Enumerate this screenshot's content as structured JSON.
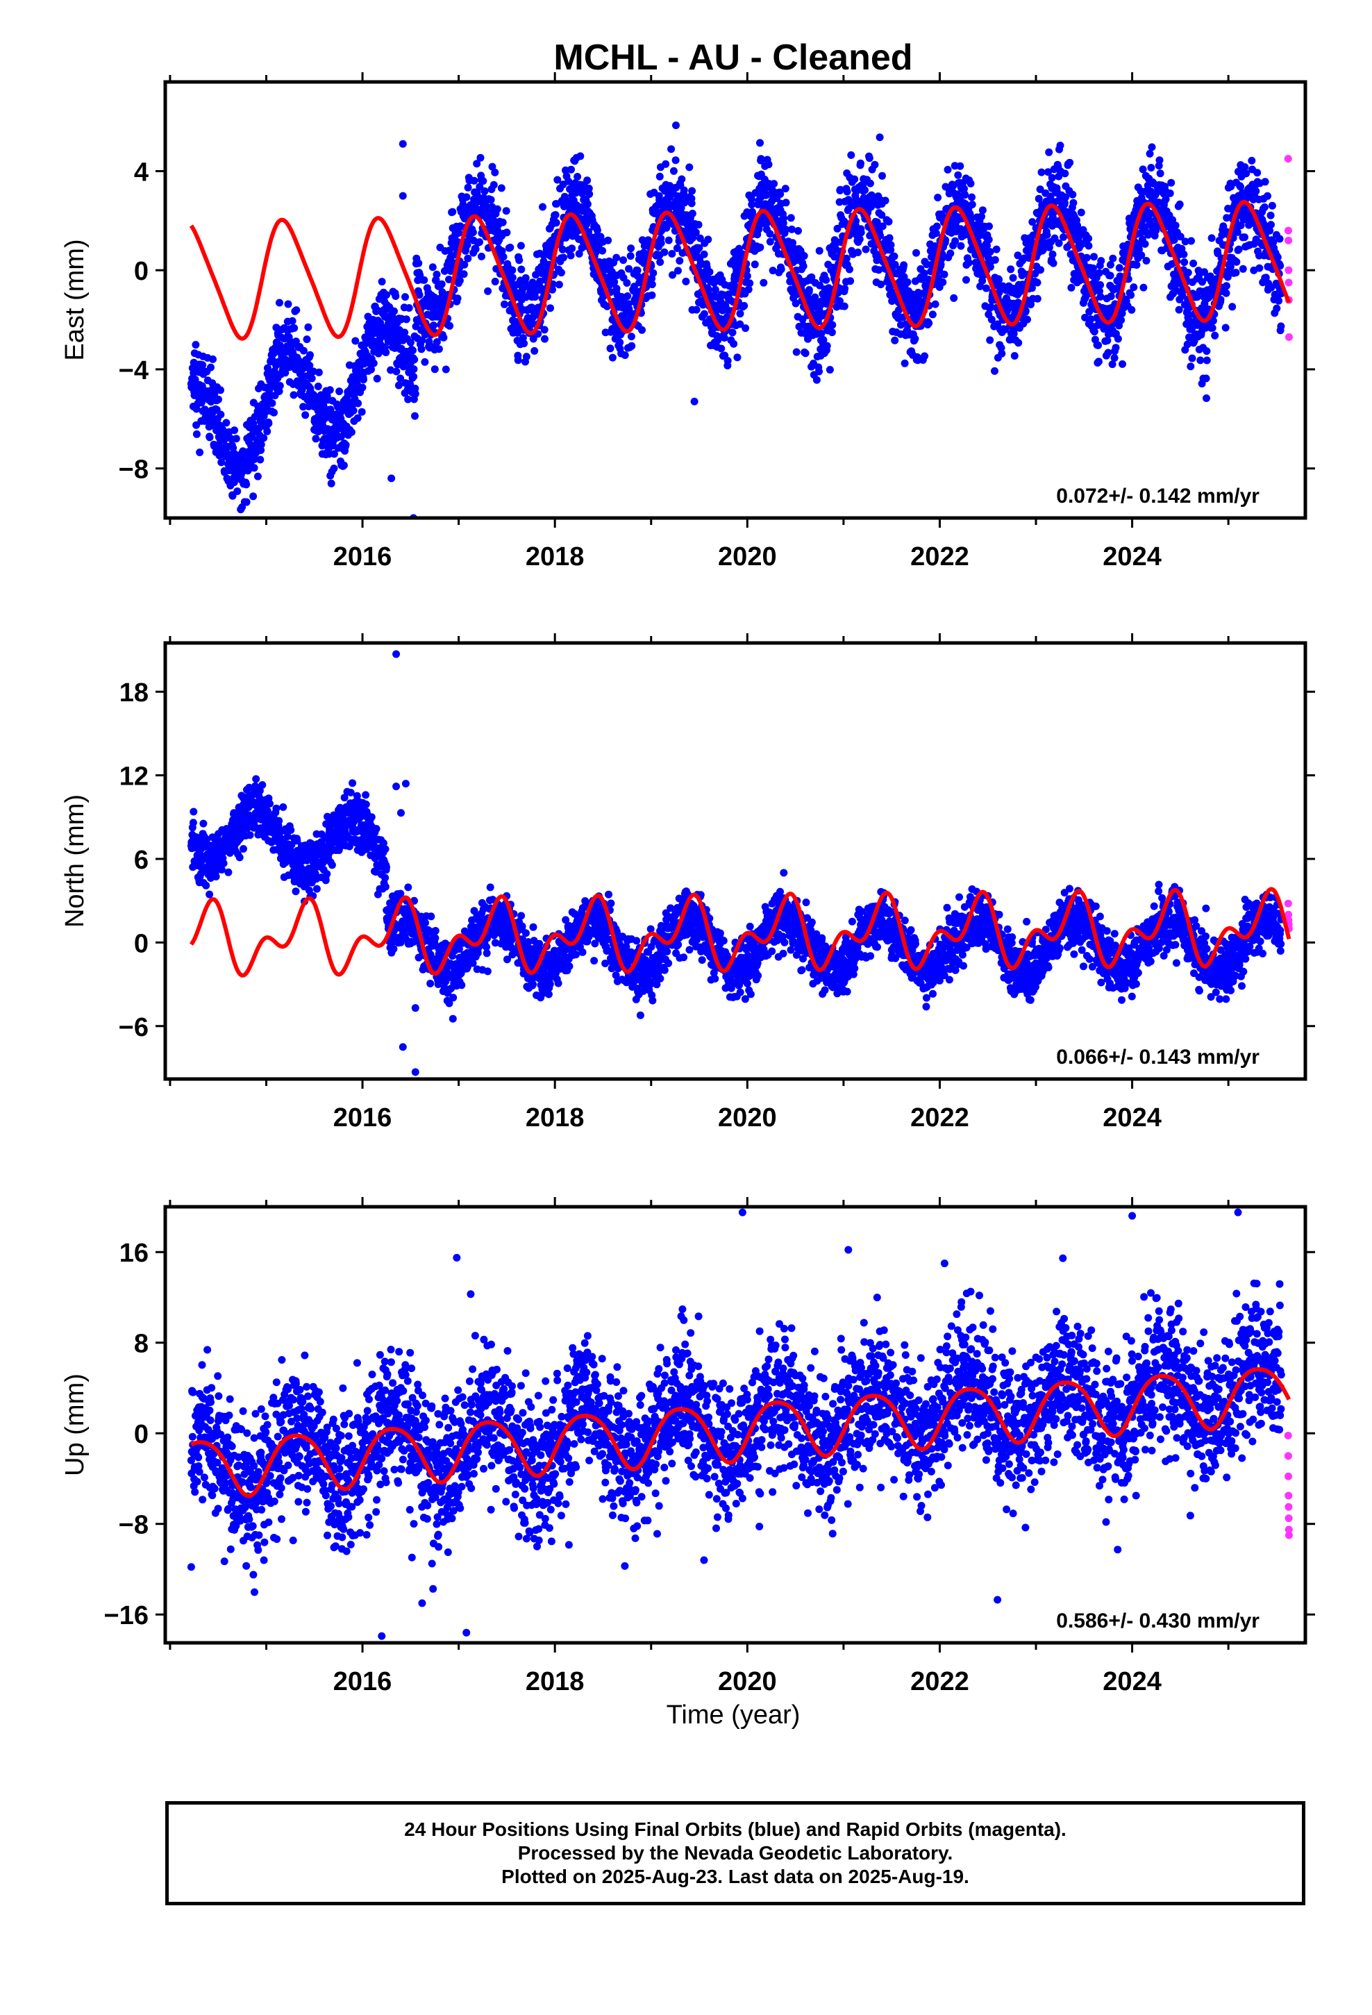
{
  "figure": {
    "title": "MCHL  - AU - Cleaned",
    "xlabel": "Time (year)"
  },
  "colors": {
    "final_orbit": "#0000ff",
    "rapid_orbit": "#ff33ff",
    "model": "#ff0000",
    "frame": "#000000"
  },
  "footer": {
    "line1": "24 Hour Positions Using Final Orbits (blue) and Rapid Orbits (magenta).",
    "line2": "Processed by the Nevada Geodetic Laboratory.",
    "line3": "Plotted on 2025-Aug-23. Last data on 2025-Aug-19."
  },
  "chart_data": [
    {
      "type": "scatter",
      "ylabel": "East (mm)",
      "rate_text": "0.072+/- 0.142 mm/yr",
      "xlim": [
        2013.95,
        2025.8
      ],
      "ylim": [
        -10.0,
        7.6
      ],
      "x_ticks": [
        2016,
        2018,
        2020,
        2022,
        2024
      ],
      "y_ticks": [
        4,
        0,
        -4,
        -8
      ],
      "grid": false,
      "data_start": 2014.22,
      "data_end": 2025.63,
      "final_orbit_segments": [
        {
          "from": 2014.22,
          "to": 2016.55,
          "sin_amp": 2.0,
          "cos_amp": 0.3,
          "offset": -6.6,
          "slope": 1.3,
          "noise": 0.8
        },
        {
          "from": 2016.55,
          "to": 2025.55,
          "sin_amp": 2.2,
          "cos_amp": 0.5,
          "offset": 0.4,
          "slope": 0.0,
          "noise": 1.0
        }
      ],
      "rapid_orbit_values": [
        4.5,
        1.6,
        1.2,
        0.0,
        -0.5,
        -1.2,
        -2.7
      ],
      "model": {
        "offset_start": -0.4,
        "slope": 0.072,
        "sin_amp": 2.2,
        "cos_amp": 0.6,
        "sin2_amp": 0.3,
        "cos2_amp": 0.2
      },
      "outliers": [
        [
          2016.53,
          -10.0
        ],
        [
          2016.42,
          5.1
        ],
        [
          2016.42,
          3.0
        ],
        [
          2019.45,
          -5.3
        ],
        [
          2016.3,
          -8.4
        ]
      ]
    },
    {
      "type": "scatter",
      "ylabel": "North (mm)",
      "rate_text": "0.066+/- 0.143 mm/yr",
      "xlim": [
        2013.95,
        2025.8
      ],
      "ylim": [
        -9.8,
        21.5
      ],
      "x_ticks": [
        2016,
        2018,
        2020,
        2022,
        2024
      ],
      "y_ticks": [
        18,
        12,
        6,
        0,
        -6
      ],
      "grid": false,
      "data_start": 2014.22,
      "data_end": 2025.63,
      "final_orbit_segments": [
        {
          "from": 2014.22,
          "to": 2016.25,
          "sin_amp": -1.2,
          "cos_amp": 1.5,
          "offset": 8.0,
          "slope": -0.6,
          "noise": 1.0
        },
        {
          "from": 2016.25,
          "to": 2025.55,
          "sin_amp": 1.2,
          "cos_amp": -1.4,
          "offset": -0.2,
          "slope": 0.0,
          "noise": 1.0
        }
      ],
      "rapid_orbit_values": [
        2.8,
        2.0,
        1.6,
        1.3,
        1.0
      ],
      "model": {
        "offset_start": 0.2,
        "slope": 0.066,
        "sin_amp": 1.3,
        "cos_amp": -1.2,
        "sin2_amp": -0.5,
        "cos2_amp": 1.3
      },
      "outliers": [
        [
          2016.35,
          20.7
        ],
        [
          2016.45,
          11.4
        ],
        [
          2016.35,
          11.2
        ],
        [
          2016.4,
          9.3
        ],
        [
          2016.42,
          -7.5
        ],
        [
          2016.55,
          -9.3
        ],
        [
          2016.55,
          -4.7
        ]
      ]
    },
    {
      "type": "scatter",
      "ylabel": "Up (mm)",
      "rate_text": "0.586+/- 0.430 mm/yr",
      "xlim": [
        2013.95,
        2025.8
      ],
      "ylim": [
        -18.5,
        20.0
      ],
      "x_ticks": [
        2016,
        2018,
        2020,
        2022,
        2024
      ],
      "y_ticks": [
        16,
        8,
        0,
        -8,
        -16
      ],
      "grid": false,
      "data_start": 2014.22,
      "data_end": 2025.63,
      "final_orbit_segments": [
        {
          "from": 2014.22,
          "to": 2025.55,
          "sin_amp": 2.5,
          "cos_amp": -1.0,
          "offset": -2.8,
          "slope": 0.6,
          "noise": 3.0
        }
      ],
      "rapid_orbit_values": [
        -0.2,
        -2.0,
        -3.8,
        -5.5,
        -6.5,
        -7.5,
        -8.5,
        -9.0
      ],
      "model": {
        "offset_start": -3.0,
        "slope": 0.586,
        "sin_amp": 2.3,
        "cos_amp": -1.0,
        "sin2_amp": 0.3,
        "cos2_amp": 0.2
      },
      "outliers": [
        [
          2016.2,
          -17.9
        ],
        [
          2017.08,
          -17.6
        ],
        [
          2019.95,
          19.5
        ],
        [
          2024.0,
          19.2
        ],
        [
          2025.1,
          19.5
        ],
        [
          2016.98,
          15.5
        ],
        [
          2021.05,
          16.2
        ],
        [
          2022.05,
          15.0
        ],
        [
          2022.6,
          -14.7
        ],
        [
          2016.62,
          -15.0
        ],
        [
          2019.55,
          -11.2
        ],
        [
          2014.22,
          -11.8
        ]
      ]
    }
  ]
}
